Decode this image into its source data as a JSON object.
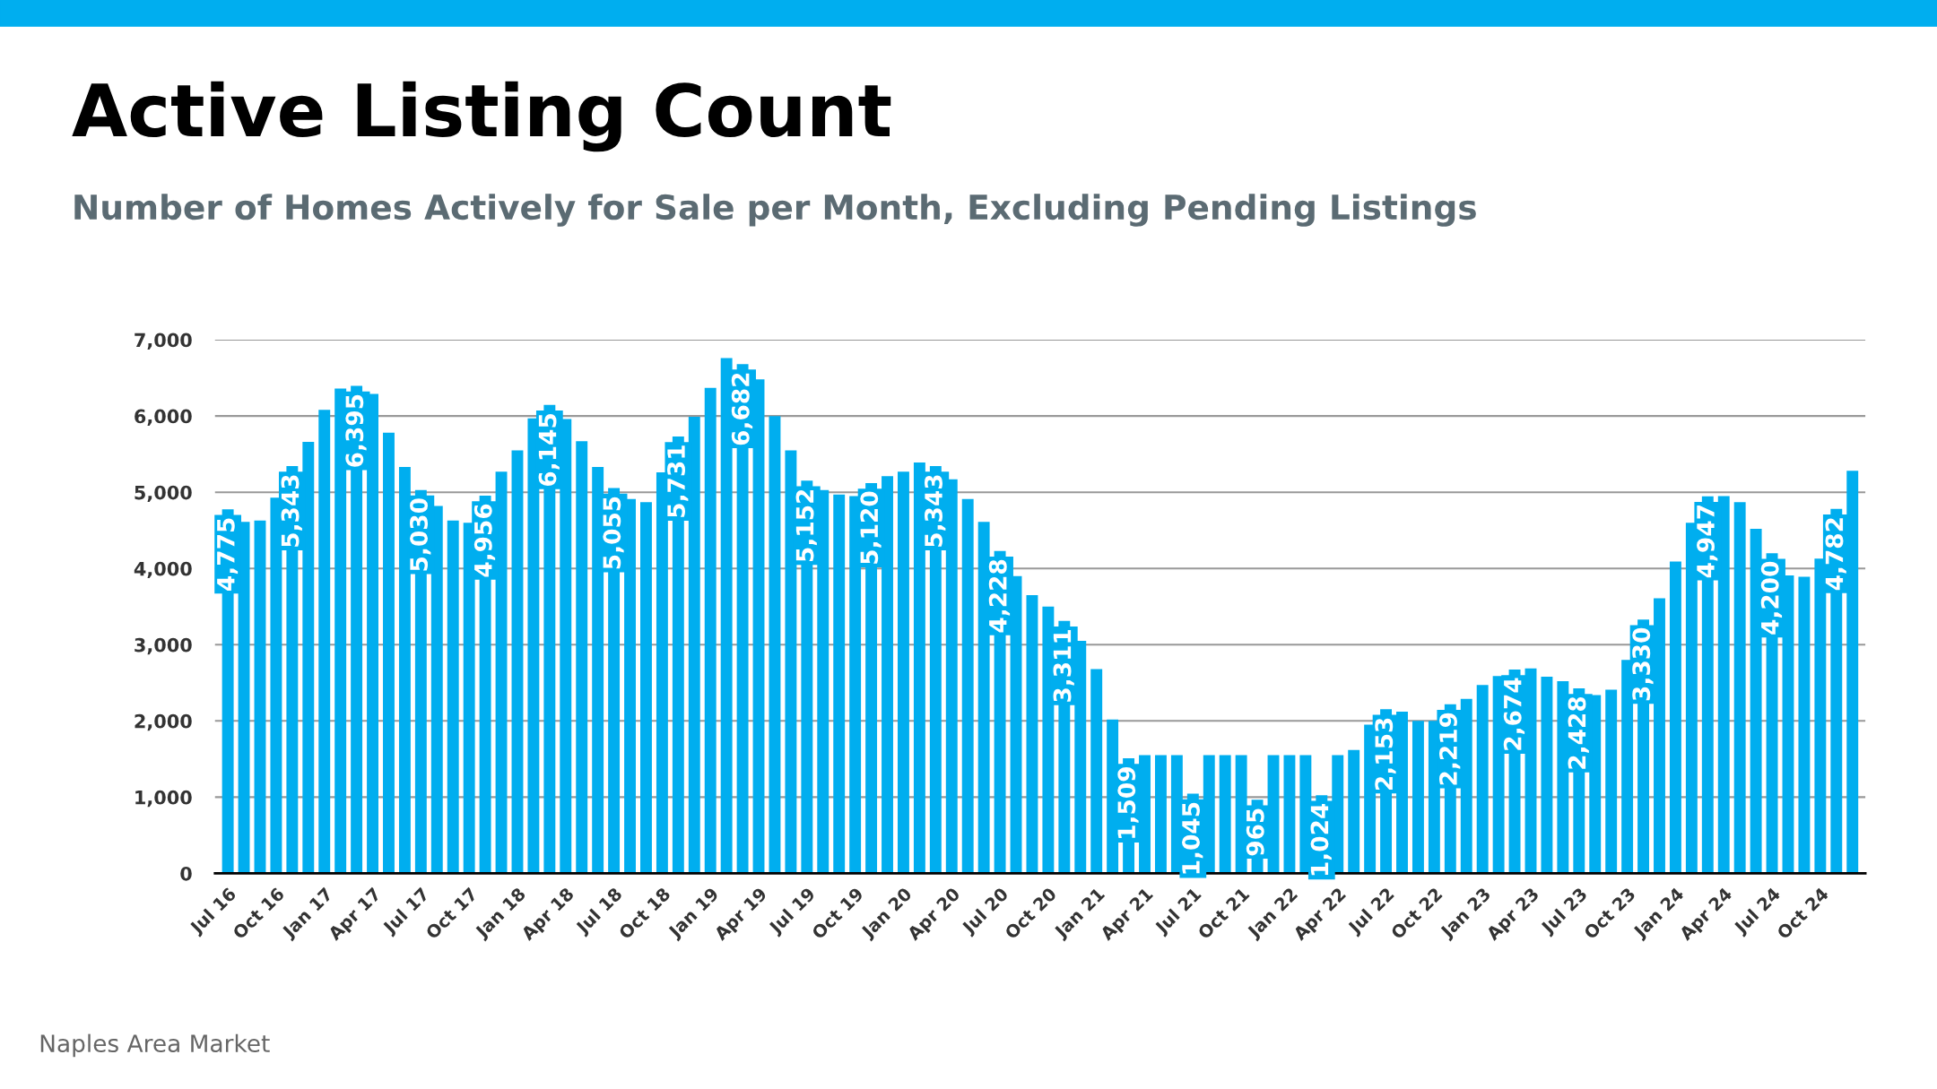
{
  "chart_data": {
    "type": "bar",
    "title": "Active Listing Count",
    "subtitle": "Number of Homes Actively for Sale per Month, Excluding Pending Listings",
    "annotations": [
      "Naples Area Market"
    ],
    "categories": [
      "Jul 16",
      null,
      null,
      "Oct 16",
      null,
      null,
      "Jan 17",
      null,
      null,
      "Apr 17",
      null,
      null,
      "Jul 17",
      null,
      null,
      "Oct 17",
      null,
      null,
      "Jan 18",
      null,
      null,
      "Apr 18",
      null,
      null,
      "Jul 18",
      null,
      null,
      "Oct 18",
      null,
      null,
      "Jan 19",
      null,
      null,
      "Apr 19",
      null,
      null,
      "Jul 19",
      null,
      null,
      "Oct 19",
      null,
      null,
      "Jan 20",
      null,
      null,
      "Apr 20",
      null,
      null,
      "Jul 20",
      null,
      null,
      "Oct 20",
      null,
      null,
      "Jan 21",
      null,
      null,
      "Apr 21",
      null,
      null,
      "Jul 21",
      null,
      null,
      "Oct 21",
      null,
      null,
      "Jan 22",
      null,
      null,
      "Apr 22",
      null,
      null,
      "Jul 22",
      null,
      null,
      "Oct 22",
      null,
      null,
      "Jan 23",
      null,
      null,
      "Apr 23",
      null,
      null,
      "Jul 23",
      null,
      null,
      "Oct 23",
      null,
      null,
      "Jan 24",
      null,
      null,
      "Apr 24",
      null,
      null,
      "Jul 24",
      null,
      null,
      "Oct 24",
      null,
      null
    ],
    "values": [
      4775,
      4610,
      4630,
      4930,
      5343,
      5660,
      6080,
      6360,
      6395,
      6290,
      5780,
      5330,
      5030,
      4820,
      4630,
      4600,
      4956,
      5270,
      5550,
      5970,
      6145,
      5960,
      5670,
      5330,
      5055,
      4910,
      4870,
      5260,
      5731,
      5990,
      6370,
      6760,
      6682,
      6480,
      6000,
      5550,
      5152,
      5030,
      4970,
      4950,
      5120,
      5210,
      5270,
      5390,
      5343,
      5170,
      4910,
      4610,
      4228,
      3900,
      3650,
      3500,
      3311,
      3050,
      2680,
      2020,
      1509,
      1550,
      1550,
      1550,
      1045,
      1550,
      1550,
      1550,
      965,
      1550,
      1550,
      1550,
      1024,
      1550,
      1620,
      1950,
      2153,
      2120,
      2000,
      2000,
      2219,
      2290,
      2470,
      2590,
      2674,
      2690,
      2580,
      2520,
      2428,
      2340,
      2410,
      2800,
      3330,
      3610,
      4090,
      4600,
      4947,
      4950,
      4870,
      4520,
      4200,
      3910,
      3890,
      4130,
      4782,
      5280
    ],
    "value_labels": [
      "4,775",
      null,
      null,
      null,
      "5,343",
      null,
      null,
      null,
      "6,395",
      null,
      null,
      null,
      "5,030",
      null,
      null,
      null,
      "4,956",
      null,
      null,
      null,
      "6,145",
      null,
      null,
      null,
      "5,055",
      null,
      null,
      null,
      "5,731",
      null,
      null,
      null,
      "6,682",
      null,
      null,
      null,
      "5,152",
      null,
      null,
      null,
      "5,120",
      null,
      null,
      null,
      "5,343",
      null,
      null,
      null,
      "4,228",
      null,
      null,
      null,
      "3,311",
      null,
      null,
      null,
      "1,509",
      null,
      null,
      null,
      "1,045",
      null,
      null,
      null,
      "965",
      null,
      null,
      null,
      "1,024",
      null,
      null,
      null,
      "2,153",
      null,
      null,
      null,
      "2,219",
      null,
      null,
      null,
      "2,674",
      null,
      null,
      null,
      "2,428",
      null,
      null,
      null,
      "3,330",
      null,
      null,
      null,
      "4,947",
      null,
      null,
      null,
      "4,200",
      null,
      null,
      null,
      "4,782",
      null
    ],
    "color": "#00aeef",
    "ylim": [
      0,
      7000
    ],
    "yticks": [
      0,
      {
        "value": 1000,
        "label": "1,000"
      },
      {
        "value": 2000,
        "label": "2,000"
      },
      {
        "value": 3000,
        "label": "3,000"
      },
      {
        "value": 4000,
        "label": "4,000"
      },
      {
        "value": 5000,
        "label": "5,000"
      },
      {
        "value": 6000,
        "label": "6,000"
      },
      {
        "value": 7000,
        "label": "7,000"
      }
    ],
    "grid": "y",
    "legend": false
  }
}
